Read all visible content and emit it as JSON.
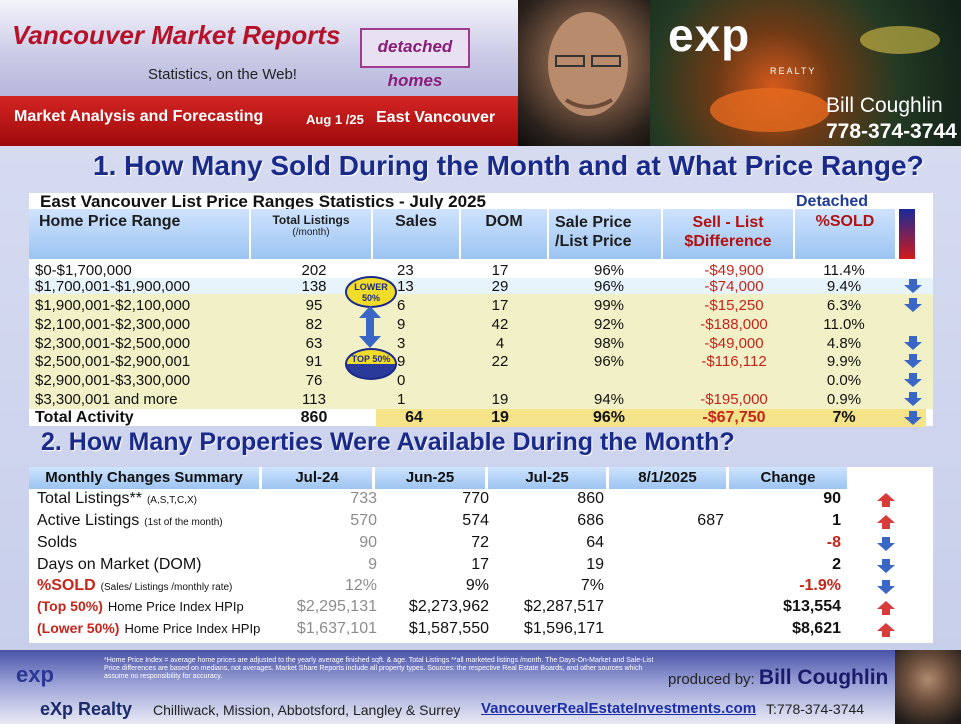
{
  "header": {
    "title": "Vancouver Market Reports",
    "subtitle": "Statistics, on the Web!",
    "badge": "detached homes",
    "bar_label": "Market Analysis and Forecasting",
    "date": "Aug 1 /25",
    "area": "East Vancouver",
    "logo": "exp",
    "logo_sub": "REALTY",
    "agent_name": "Bill Coughlin",
    "agent_phone": "778-374-3744"
  },
  "section1": {
    "heading": "1. How Many Sold During the Month and at What Price Range?",
    "table_title": "East Vancouver List Price Ranges Statistics - July  2025",
    "table_type": "Detached",
    "columns": {
      "range": "Home Price Range",
      "listings": "Total  Listings",
      "listings_sub": "(/month)",
      "sales": "Sales",
      "dom": "DOM",
      "slp": "Sale Price /List Price",
      "diff": "Sell - List $Difference",
      "sold": "%SOLD"
    },
    "badge_lower": "LOWER 50%",
    "badge_top": "TOP 50%",
    "rows": [
      {
        "range": "$0-$1,700,000",
        "listings": "202",
        "sales": "23",
        "dom": "17",
        "slp": "96%",
        "diff": "-$49,900",
        "sold": "11.4%",
        "arrow": ""
      },
      {
        "range": "$1,700,001-$1,900,000",
        "listings": "138",
        "sales": "13",
        "dom": "29",
        "slp": "96%",
        "diff": "-$74,000",
        "sold": "9.4%",
        "arrow": "down"
      },
      {
        "range": "$1,900,001-$2,100,000",
        "listings": "95",
        "sales": "6",
        "dom": "17",
        "slp": "99%",
        "diff": "-$15,250",
        "sold": "6.3%",
        "arrow": "down"
      },
      {
        "range": "$2,100,001-$2,300,000",
        "listings": "82",
        "sales": "9",
        "dom": "42",
        "slp": "92%",
        "diff": "-$188,000",
        "sold": "11.0%",
        "arrow": ""
      },
      {
        "range": "$2,300,001-$2,500,000",
        "listings": "63",
        "sales": "3",
        "dom": "4",
        "slp": "98%",
        "diff": "-$49,000",
        "sold": "4.8%",
        "arrow": "down"
      },
      {
        "range": "$2,500,001-$2,900,001",
        "listings": "91",
        "sales": "9",
        "dom": "22",
        "slp": "96%",
        "diff": "-$116,112",
        "sold": "9.9%",
        "arrow": "down"
      },
      {
        "range": "$2,900,001-$3,300,000",
        "listings": "76",
        "sales": "0",
        "dom": "",
        "slp": "",
        "diff": "",
        "sold": "0.0%",
        "arrow": "down"
      },
      {
        "range": "$3,300,001 and more",
        "listings": "113",
        "sales": "1",
        "dom": "19",
        "slp": "94%",
        "diff": "-$195,000",
        "sold": "0.9%",
        "arrow": "down"
      }
    ],
    "total": {
      "label": "Total Activity",
      "listings": "860",
      "sales": "64",
      "dom": "19",
      "slp": "96%",
      "diff": "-$67,750",
      "sold": "7%",
      "arrow": "down"
    }
  },
  "section2": {
    "heading": "2. How Many Properties Were Available During the Month?",
    "columns": [
      "Monthly Changes Summary",
      "Jul-24",
      "Jun-25",
      "Jul-25",
      "8/1/2025",
      "Change"
    ],
    "rows": [
      {
        "label": "Total Listings**",
        "note": "(A,S,T,C,X)",
        "v1": "733",
        "v2": "770",
        "v3": "860",
        "v4": "",
        "change": "90",
        "change_color": "black",
        "arrow": "up"
      },
      {
        "label": "Active Listings",
        "note": "(1st of the month)",
        "v1": "570",
        "v2": "574",
        "v3": "686",
        "v4": "687",
        "change": "1",
        "change_color": "black",
        "arrow": "up"
      },
      {
        "label": "Solds",
        "note": "",
        "v1": "90",
        "v2": "72",
        "v3": "64",
        "v4": "",
        "change": "-8",
        "change_color": "red",
        "arrow": "down"
      },
      {
        "label": "Days on Market (DOM)",
        "note": "",
        "v1": "9",
        "v2": "17",
        "v3": "19",
        "v4": "",
        "change": "2",
        "change_color": "black",
        "arrow": "down"
      },
      {
        "label": "%SOLD",
        "note": "(Sales/ Listings /monthly rate)",
        "v1": "12%",
        "v2": "9%",
        "v3": "7%",
        "v4": "",
        "change": "-1.9%",
        "change_color": "red",
        "arrow": "down"
      },
      {
        "label": "(Top 50%)",
        "note": "Home Price Index HPIp",
        "v1": "$2,295,131",
        "v2": "$2,273,962",
        "v3": "$2,287,517",
        "v4": "",
        "change": "$13,554",
        "change_color": "black",
        "arrow": "up"
      },
      {
        "label": "(Lower 50%)",
        "note": "Home Price Index HPIp",
        "v1": "$1,637,101",
        "v2": "$1,587,550",
        "v3": "$1,596,171",
        "v4": "",
        "change": "$8,621",
        "change_color": "black",
        "arrow": "up"
      }
    ]
  },
  "footer": {
    "logo": "exp",
    "note": "*Home Price Index = average home prices are adjusted to the yearly average finished sqft. & age.  Total Listings **all marketed listings /month. The Days-On-Market and Sale-List Price differences are based on medians, not averages. Market Share Reports include all property types. Sources:  the respective Real Estate Boards, and other sources which assume no responsibility for accuracy.",
    "produced_by": "produced by:",
    "producer": "Bill Coughlin",
    "company": "eXp Realty",
    "cities": "Chilliwack, Mission, Abbotsford, Langley & Surrey",
    "url": "VancouverRealEstateInvestments.com",
    "tel": "T:778-374-3744"
  },
  "colors": {
    "accent_red": "#c4261b",
    "heading_blue": "#1a2a8a",
    "arrow_blue": "#3a67c6",
    "arrow_red": "#d93a3a"
  }
}
